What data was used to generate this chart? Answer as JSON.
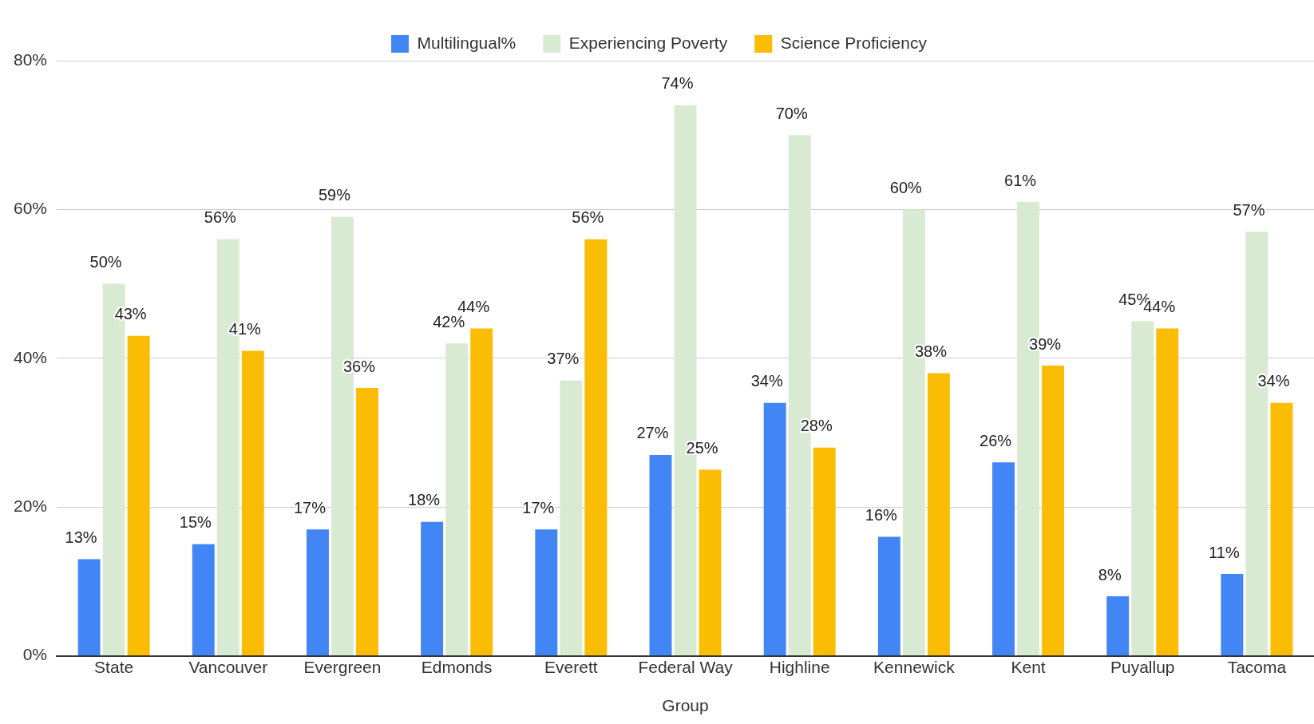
{
  "chart_data": {
    "type": "bar",
    "xlabel": "Group",
    "categories": [
      "State",
      "Vancouver",
      "Evergreen",
      "Edmonds",
      "Everett",
      "Federal Way",
      "Highline",
      "Kennewick",
      "Kent",
      "Puyallup",
      "Tacoma"
    ],
    "series": [
      {
        "name": "Multilingual%",
        "color": "#4285f4",
        "values": [
          13,
          15,
          17,
          18,
          17,
          27,
          34,
          16,
          26,
          8,
          11
        ],
        "value_labels": [
          "13%",
          "15%",
          "17%",
          "18%",
          "17%",
          "27%",
          "34%",
          "16%",
          "26%",
          "8%",
          "11%"
        ]
      },
      {
        "name": "Experiencing Poverty",
        "color": "#d9ead3",
        "values": [
          50,
          56,
          59,
          42,
          37,
          74,
          70,
          60,
          61,
          45,
          57
        ],
        "value_labels": [
          "50%",
          "56%",
          "59%",
          "42%",
          "37%",
          "74%",
          "70%",
          "60%",
          "61%",
          "45%",
          "57%"
        ]
      },
      {
        "name": "Science Proficiency",
        "color": "#fbbc04",
        "values": [
          43,
          41,
          36,
          44,
          56,
          25,
          28,
          38,
          39,
          44,
          34
        ],
        "value_labels": [
          "43%",
          "41%",
          "36%",
          "44%",
          "56%",
          "25%",
          "28%",
          "38%",
          "39%",
          "44%",
          "34%"
        ]
      }
    ],
    "ylim": [
      0,
      80
    ],
    "yticks": [
      {
        "value": 0,
        "label": "0%"
      },
      {
        "value": 20,
        "label": "20%"
      },
      {
        "value": 40,
        "label": "40%"
      },
      {
        "value": 60,
        "label": "60%"
      },
      {
        "value": 80,
        "label": "80%"
      }
    ],
    "grid": "y",
    "legend": "top"
  }
}
